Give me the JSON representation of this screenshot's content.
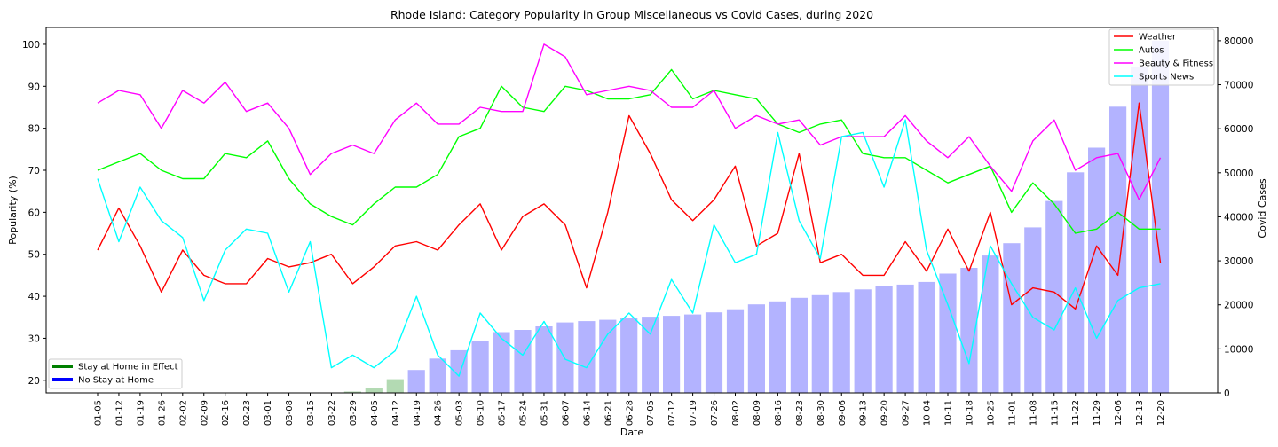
{
  "chart_data": {
    "type": "line",
    "title": "Rhode Island: Category Popularity in Group Miscellaneous vs Covid Cases, during 2020",
    "xlabel": "Date",
    "ylabel": "Popularity (%)",
    "y2label": "Covid Cases",
    "ylim": [
      17,
      104
    ],
    "y2lim": [
      0,
      83000
    ],
    "yticks": [
      20,
      30,
      40,
      50,
      60,
      70,
      80,
      90,
      100
    ],
    "y2ticks": [
      0,
      10000,
      20000,
      30000,
      40000,
      50000,
      60000,
      70000,
      80000
    ],
    "grid": false,
    "legend_position": "top-right",
    "categories": [
      "01-05",
      "01-12",
      "01-19",
      "01-26",
      "02-02",
      "02-09",
      "02-16",
      "02-23",
      "03-01",
      "03-08",
      "03-15",
      "03-22",
      "03-29",
      "04-05",
      "04-12",
      "04-19",
      "04-26",
      "05-03",
      "05-10",
      "05-17",
      "05-24",
      "05-31",
      "06-07",
      "06-14",
      "06-21",
      "06-28",
      "07-05",
      "07-12",
      "07-19",
      "07-26",
      "08-02",
      "08-09",
      "08-16",
      "08-23",
      "08-30",
      "09-06",
      "09-13",
      "09-20",
      "09-27",
      "10-04",
      "10-11",
      "10-18",
      "10-25",
      "11-01",
      "11-08",
      "11-15",
      "11-22",
      "11-29",
      "12-06",
      "12-13",
      "12-20"
    ],
    "series": [
      {
        "name": "Weather",
        "color": "#ff0000",
        "values": [
          51,
          61,
          52,
          41,
          51,
          45,
          43,
          43,
          49,
          47,
          48,
          50,
          43,
          47,
          52,
          53,
          51,
          57,
          62,
          51,
          59,
          62,
          57,
          42,
          60,
          83,
          74,
          63,
          58,
          63,
          71,
          52,
          55,
          74,
          48,
          50,
          45,
          45,
          53,
          46,
          56,
          46,
          60,
          38,
          42,
          41,
          37,
          52,
          45,
          86,
          48
        ]
      },
      {
        "name": "Autos",
        "color": "#00ff00",
        "values": [
          70,
          72,
          74,
          70,
          68,
          68,
          74,
          73,
          77,
          68,
          62,
          59,
          57,
          62,
          66,
          66,
          69,
          78,
          80,
          90,
          85,
          84,
          90,
          89,
          87,
          87,
          88,
          94,
          87,
          89,
          88,
          87,
          81,
          79,
          81,
          82,
          74,
          73,
          73,
          70,
          67,
          69,
          71,
          60,
          67,
          62,
          55,
          56,
          60,
          56,
          56
        ]
      },
      {
        "name": "Beauty & Fitness",
        "color": "#ff00ff",
        "values": [
          86,
          89,
          88,
          80,
          89,
          86,
          91,
          84,
          86,
          80,
          69,
          74,
          76,
          74,
          82,
          86,
          81,
          81,
          85,
          84,
          84,
          100,
          97,
          88,
          89,
          90,
          89,
          85,
          85,
          89,
          80,
          83,
          81,
          82,
          76,
          78,
          78,
          78,
          83,
          77,
          73,
          78,
          71,
          65,
          77,
          82,
          70,
          73,
          74,
          63,
          73
        ]
      },
      {
        "name": "Sports News",
        "color": "#00ffff",
        "values": [
          68,
          53,
          66,
          58,
          54,
          39,
          51,
          56,
          55,
          41,
          53,
          23,
          26,
          23,
          27,
          40,
          26,
          21,
          36,
          30,
          26,
          34,
          25,
          23,
          31,
          36,
          31,
          44,
          36,
          57,
          48,
          50,
          79,
          58,
          49,
          78,
          79,
          66,
          82,
          51,
          38,
          24,
          52,
          43,
          35,
          32,
          42,
          30,
          39,
          42,
          43
        ]
      }
    ],
    "bars": {
      "name": "Covid Cases",
      "color": "#b3b3ff",
      "highlight_color": "#b3dab3",
      "values": [
        0,
        0,
        0,
        0,
        0,
        0,
        0,
        0,
        0,
        0,
        0,
        0,
        300,
        1100,
        3100,
        5200,
        7800,
        9700,
        11800,
        13800,
        14300,
        15100,
        16000,
        16300,
        16600,
        17000,
        17300,
        17500,
        17800,
        18300,
        19000,
        20100,
        20800,
        21600,
        22200,
        22900,
        23500,
        24200,
        24600,
        25200,
        27100,
        28400,
        31200,
        34000,
        37600,
        43600,
        50100,
        55700,
        65000,
        74000,
        80000
      ],
      "stay_home_effect": [
        false,
        false,
        false,
        false,
        false,
        false,
        false,
        false,
        false,
        false,
        false,
        false,
        true,
        true,
        true,
        false,
        false,
        false,
        false,
        false,
        false,
        false,
        false,
        false,
        false,
        false,
        false,
        false,
        false,
        false,
        false,
        false,
        false,
        false,
        false,
        false,
        false,
        false,
        false,
        false,
        false,
        false,
        false,
        false,
        false,
        false,
        false,
        false,
        false,
        false,
        false
      ]
    },
    "status_legend": [
      {
        "label": "Stay at Home in Effect",
        "color": "#008000"
      },
      {
        "label": "No Stay at Home",
        "color": "#0000ff"
      }
    ]
  }
}
